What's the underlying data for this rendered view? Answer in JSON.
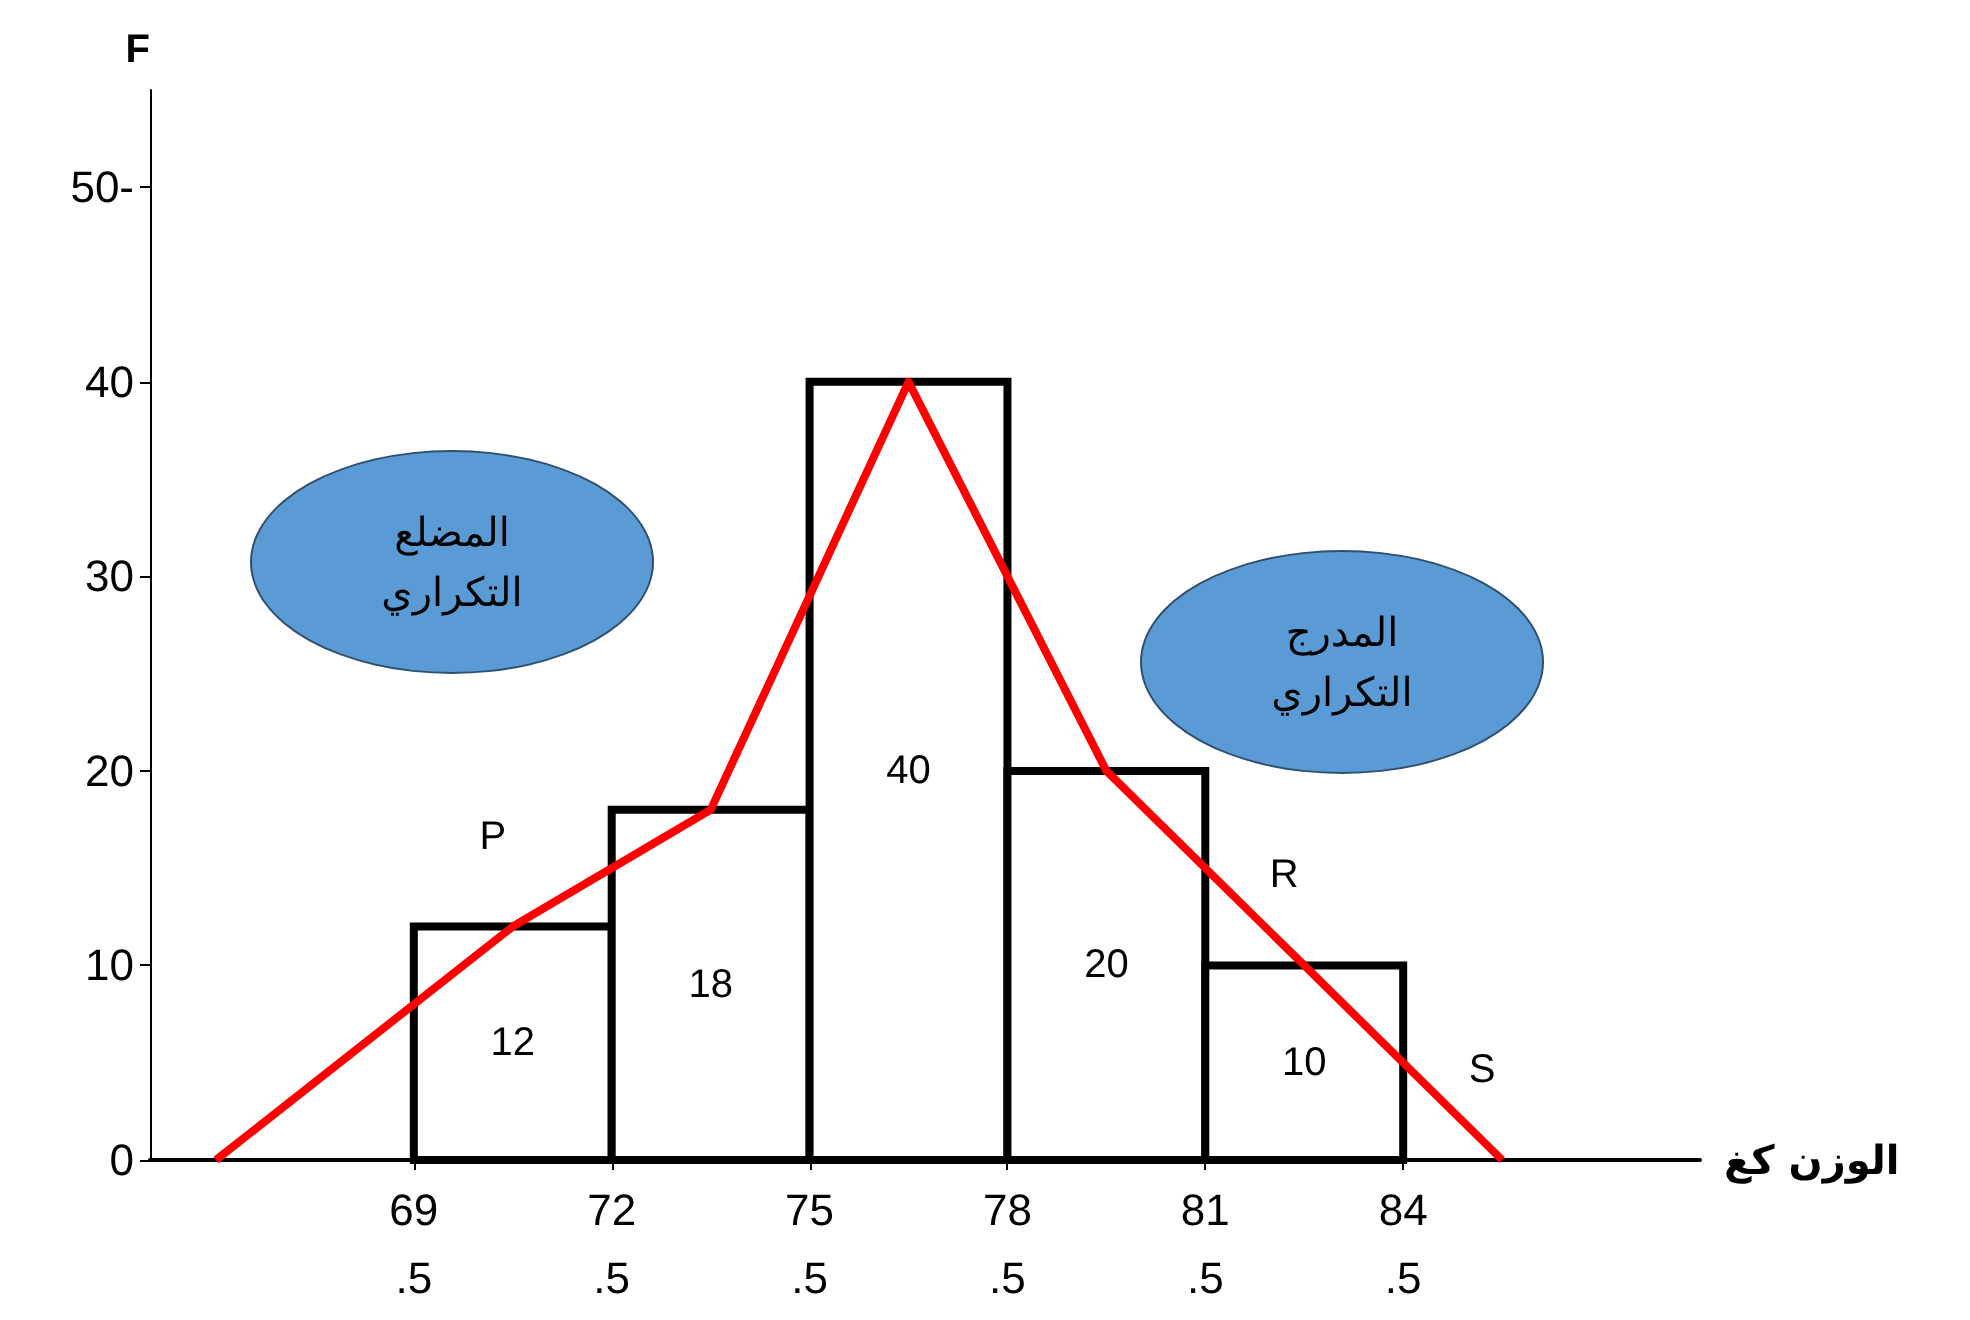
{
  "chart_data": {
    "type": "histogram",
    "xlabel": "الوزن كغ",
    "ylabel": "F",
    "bins": [
      69.5,
      72.5,
      75.5,
      78.5,
      81.5,
      84.5
    ],
    "series": [
      {
        "color": "#000000",
        "values": [
          12,
          18,
          40,
          20,
          10
        ],
        "value_labels": [
          "12",
          "18",
          "40",
          "20",
          "10"
        ]
      },
      {
        "type": "line",
        "color": "#ff0000",
        "x": [
          66.5,
          71,
          74,
          77,
          80,
          83,
          86
        ],
        "values": [
          0,
          12,
          18,
          40,
          20,
          10,
          0
        ]
      }
    ],
    "xlim": [
      65.5,
      89
    ],
    "ylim": [
      0,
      55
    ],
    "xticks": [
      69.5,
      72.5,
      75.5,
      78.5,
      81.5,
      84.5
    ],
    "yticks": [
      0,
      10,
      20,
      30,
      40,
      {
        "value": 50,
        "label": "50-"
      }
    ],
    "grid": false,
    "annotations": [
      "المضلع\nالتكراري",
      "المدرج\nالتكراري",
      {
        "text": "P",
        "x": 71,
        "y": 12
      },
      {
        "text": "R",
        "x": 83,
        "y": 10
      },
      {
        "text": "S",
        "x": 86,
        "y": 0
      }
    ]
  }
}
